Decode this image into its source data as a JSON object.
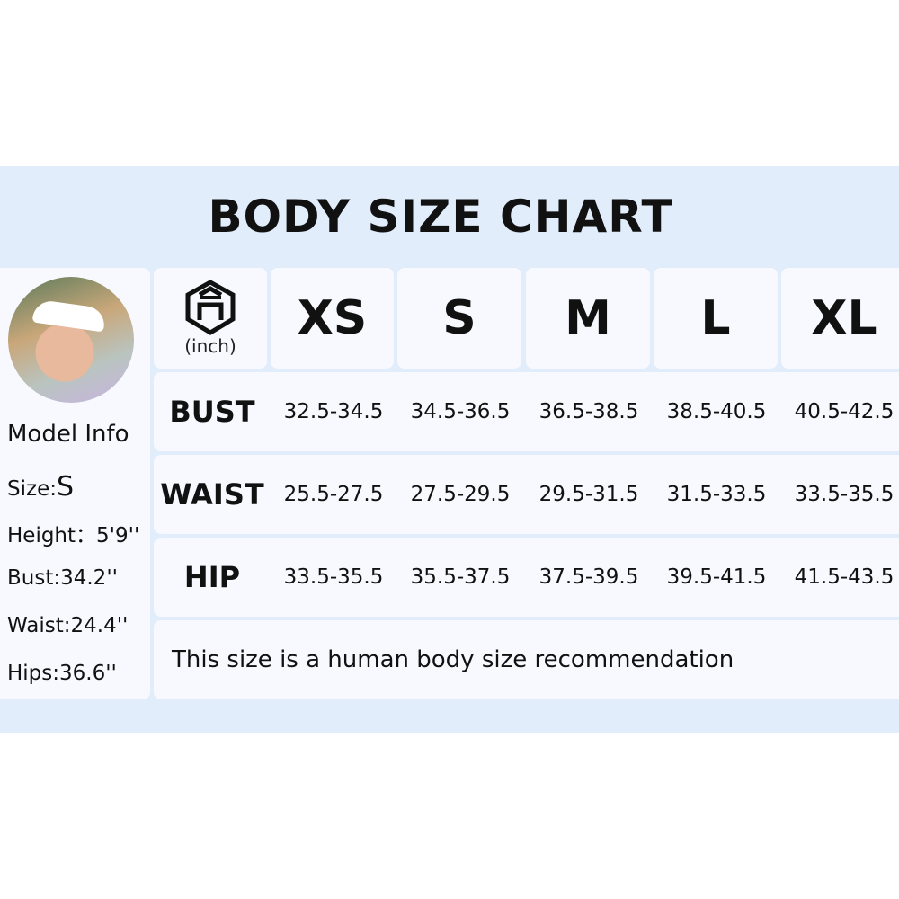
{
  "title": "BODY SIZE CHART",
  "unit": "(inch)",
  "sizes": [
    "XS",
    "S",
    "M",
    "L",
    "XL"
  ],
  "rows": [
    {
      "label": "BUST",
      "values": [
        "32.5-34.5",
        "34.5-36.5",
        "36.5-38.5",
        "38.5-40.5",
        "40.5-42.5"
      ]
    },
    {
      "label": "WAIST",
      "values": [
        "25.5-27.5",
        "27.5-29.5",
        "29.5-31.5",
        "31.5-33.5",
        "33.5-35.5"
      ]
    },
    {
      "label": "HIP",
      "values": [
        "33.5-35.5",
        "35.5-37.5",
        "37.5-39.5",
        "39.5-41.5",
        "41.5-43.5"
      ]
    }
  ],
  "note": "This size is a human body size recommendation",
  "model": {
    "heading": "Model Info",
    "size_label": "Size:",
    "size": "S",
    "height": "Height：5'9''",
    "bust": "Bust:34.2''",
    "waist": "Waist:24.4''",
    "hips": "Hips:36.6''"
  },
  "colors": {
    "band": "#e2edfb",
    "cell": "#f7f9fe"
  },
  "logo_icon": "hexagon-house-logo"
}
